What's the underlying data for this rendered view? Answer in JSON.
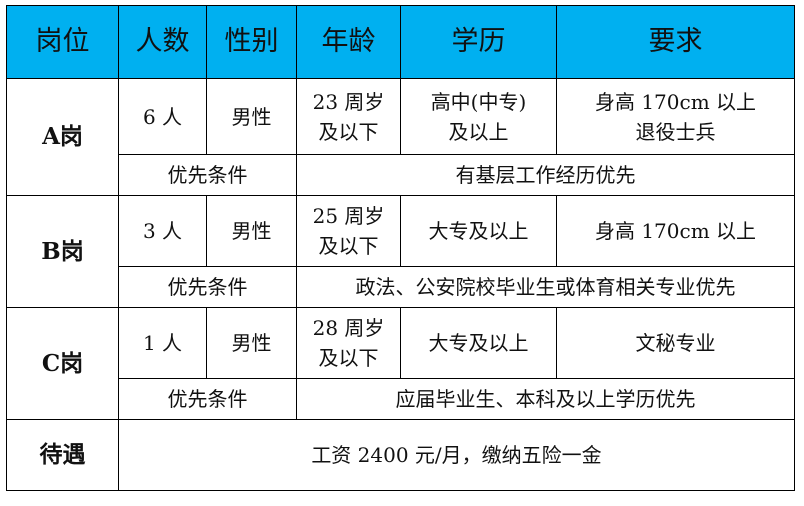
{
  "header": [
    "岗位",
    "人数",
    "性别",
    "年龄",
    "学历",
    "要求"
  ],
  "posts": [
    {
      "name": "A岗",
      "count": "6 人",
      "gender": "男性",
      "age": [
        "23 周岁",
        "及以下"
      ],
      "education": [
        "高中(中专)",
        "及以上"
      ],
      "requirement": [
        "身高 170cm 以上",
        "退役士兵"
      ],
      "priority_label": "优先条件",
      "priority": "有基层工作经历优先"
    },
    {
      "name": "B岗",
      "count": "3 人",
      "gender": "男性",
      "age": [
        "25 周岁",
        "及以下"
      ],
      "education": [
        "大专及以上"
      ],
      "requirement": [
        "身高 170cm 以上"
      ],
      "priority_label": "优先条件",
      "priority": "政法、公安院校毕业生或体育相关专业优先"
    },
    {
      "name": "C岗",
      "count": "1 人",
      "gender": "男性",
      "age": [
        "28 周岁",
        "及以下"
      ],
      "education": [
        "大专及以上"
      ],
      "requirement": [
        "文秘专业"
      ],
      "priority_label": "优先条件",
      "priority": "应届毕业生、本科及以上学历优先"
    }
  ],
  "benefits": {
    "label": "待遇",
    "value": "工资 2400 元/月，缴纳五险一金"
  },
  "colors": {
    "header_bg": "#00B0F0"
  }
}
